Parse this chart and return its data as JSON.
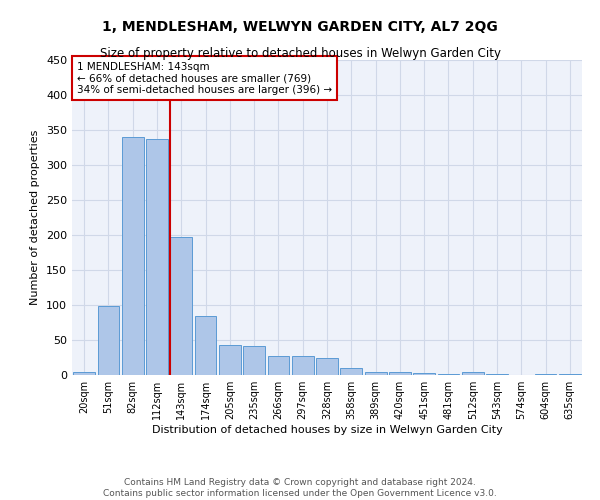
{
  "title": "1, MENDLESHAM, WELWYN GARDEN CITY, AL7 2QG",
  "subtitle": "Size of property relative to detached houses in Welwyn Garden City",
  "xlabel": "Distribution of detached houses by size in Welwyn Garden City",
  "ylabel": "Number of detached properties",
  "bar_labels": [
    "20sqm",
    "51sqm",
    "82sqm",
    "112sqm",
    "143sqm",
    "174sqm",
    "205sqm",
    "235sqm",
    "266sqm",
    "297sqm",
    "328sqm",
    "358sqm",
    "389sqm",
    "420sqm",
    "451sqm",
    "481sqm",
    "512sqm",
    "543sqm",
    "574sqm",
    "604sqm",
    "635sqm"
  ],
  "bar_values": [
    5,
    98,
    340,
    337,
    197,
    85,
    43,
    42,
    27,
    27,
    24,
    10,
    5,
    5,
    3,
    2,
    5,
    1,
    0,
    2,
    1
  ],
  "bar_color": "#aec6e8",
  "bar_edge_color": "#5b9bd5",
  "ylim": [
    0,
    450
  ],
  "yticks": [
    0,
    50,
    100,
    150,
    200,
    250,
    300,
    350,
    400,
    450
  ],
  "vline_x_index": 4,
  "vline_color": "#cc0000",
  "annotation_text": "1 MENDLESHAM: 143sqm\n← 66% of detached houses are smaller (769)\n34% of semi-detached houses are larger (396) →",
  "annotation_box_color": "#cc0000",
  "footnote": "Contains HM Land Registry data © Crown copyright and database right 2024.\nContains public sector information licensed under the Open Government Licence v3.0.",
  "grid_color": "#d0d8e8",
  "bg_color": "#eef2fa"
}
